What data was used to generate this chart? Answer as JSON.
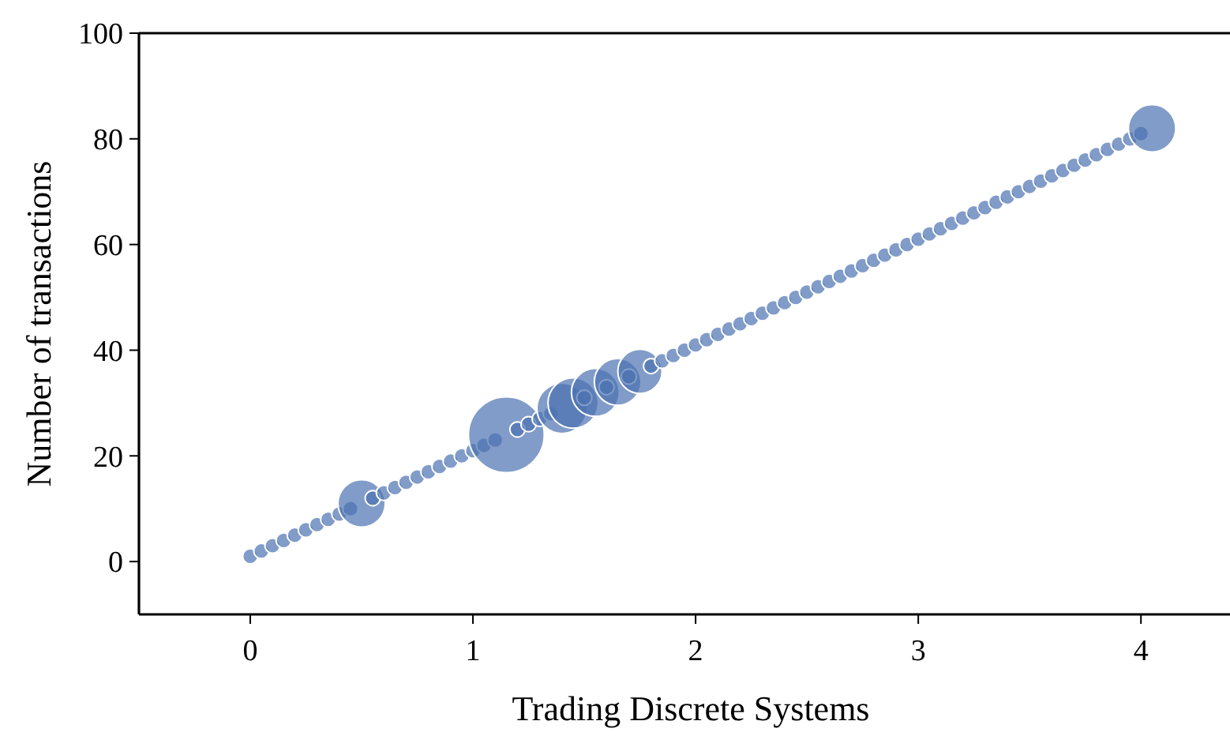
{
  "chart_data": {
    "type": "bubble",
    "xlabel": "Trading Discrete Systems",
    "ylabel": "Number of transactions",
    "xlim": [
      -0.5,
      4.4
    ],
    "ylim": [
      -10,
      100
    ],
    "xticks": [
      0,
      1,
      2,
      3,
      4
    ],
    "yticks": [
      0,
      20,
      40,
      60,
      80,
      100
    ],
    "grid": false,
    "marker": "circle",
    "series": [
      {
        "color": "#4c72b0",
        "x": [
          0,
          0.05,
          0.1,
          0.15,
          0.2,
          0.25,
          0.3,
          0.35,
          0.4,
          0.45,
          0.5,
          0.55,
          0.6,
          0.65,
          0.7,
          0.75,
          0.8,
          0.85,
          0.9,
          0.95,
          1,
          1.05,
          1.1,
          1.15,
          1.2,
          1.25,
          1.3,
          1.35,
          1.4,
          1.45,
          1.5,
          1.55,
          1.6,
          1.65,
          1.7,
          1.75,
          1.8,
          1.85,
          1.9,
          1.95,
          2,
          2.05,
          2.1,
          2.15,
          2.2,
          2.25,
          2.3,
          2.35,
          2.4,
          2.45,
          2.5,
          2.55,
          2.6,
          2.65,
          2.7,
          2.75,
          2.8,
          2.85,
          2.9,
          2.95,
          3,
          3.05,
          3.1,
          3.15,
          3.2,
          3.25,
          3.3,
          3.35,
          3.4,
          3.45,
          3.5,
          3.55,
          3.6,
          3.65,
          3.7,
          3.75,
          3.8,
          3.85,
          3.9,
          3.95,
          4,
          4.05
        ],
        "values": [
          1,
          2,
          3,
          4,
          5,
          6,
          7,
          8,
          9,
          10,
          11,
          12,
          13,
          14,
          15,
          16,
          17,
          18,
          19,
          20,
          21,
          22,
          23,
          24,
          25,
          26,
          27,
          28,
          29,
          30,
          31,
          32,
          33,
          34,
          35,
          36,
          37,
          38,
          39,
          40,
          41,
          42,
          43,
          44,
          45,
          46,
          47,
          48,
          49,
          50,
          51,
          52,
          53,
          54,
          55,
          56,
          57,
          58,
          59,
          60,
          61,
          62,
          63,
          64,
          65,
          66,
          67,
          68,
          69,
          70,
          71,
          72,
          73,
          74,
          75,
          76,
          77,
          78,
          79,
          80,
          81,
          82
        ],
        "sizes": [
          0.04,
          0.04,
          0.04,
          0.04,
          0.04,
          0.04,
          0.04,
          0.04,
          0.04,
          0.04,
          0.39,
          0.04,
          0.04,
          0.04,
          0.04,
          0.04,
          0.04,
          0.04,
          0.04,
          0.04,
          0.04,
          0.04,
          0.04,
          1,
          0.04,
          0.04,
          0.04,
          0.04,
          0.44,
          0.44,
          0.04,
          0.4,
          0.04,
          0.38,
          0.04,
          0.34,
          0.04,
          0.04,
          0.04,
          0.04,
          0.04,
          0.04,
          0.04,
          0.04,
          0.04,
          0.04,
          0.04,
          0.04,
          0.04,
          0.04,
          0.04,
          0.04,
          0.04,
          0.04,
          0.04,
          0.04,
          0.04,
          0.04,
          0.04,
          0.04,
          0.04,
          0.04,
          0.04,
          0.04,
          0.04,
          0.04,
          0.04,
          0.04,
          0.04,
          0.04,
          0.04,
          0.04,
          0.04,
          0.04,
          0.04,
          0.04,
          0.04,
          0.04,
          0.04,
          0.04,
          0.04,
          0.39
        ]
      }
    ]
  }
}
